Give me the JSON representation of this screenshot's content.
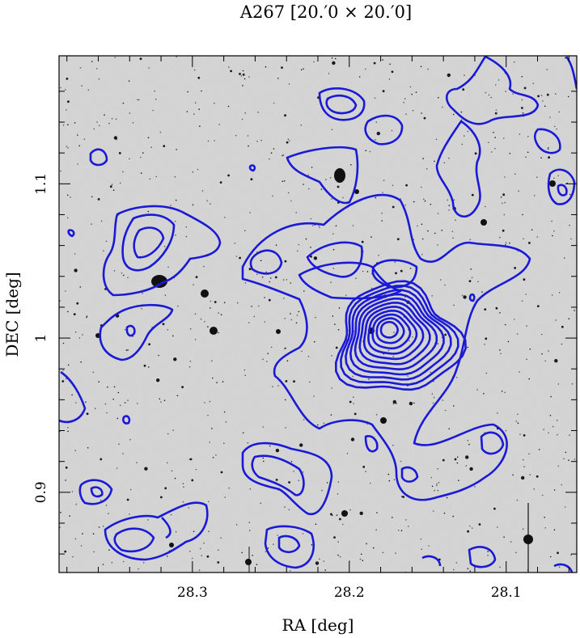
{
  "figure": {
    "title": "A267  [20.′0 × 20.′0]",
    "xlabel": "RA [deg]",
    "ylabel": "DEC [deg]"
  },
  "axes": {
    "x_range_deg": [
      28.385,
      28.055
    ],
    "y_range_deg": [
      0.848,
      1.183
    ],
    "x_ticks": [
      {
        "value": 28.3,
        "label": "28.3"
      },
      {
        "value": 28.2,
        "label": "28.2"
      },
      {
        "value": 28.1,
        "label": "28.1"
      }
    ],
    "y_ticks": [
      {
        "value": 0.9,
        "label": "0.9"
      },
      {
        "value": 1.0,
        "label": "1"
      },
      {
        "value": 1.1,
        "label": "1.1"
      }
    ]
  },
  "colors": {
    "background_image": "#d6d6d6",
    "contour": "#1a1ad6",
    "frame": "#000000"
  },
  "contour_peak": {
    "ra": 28.175,
    "dec": 1.006,
    "levels": 11
  }
}
